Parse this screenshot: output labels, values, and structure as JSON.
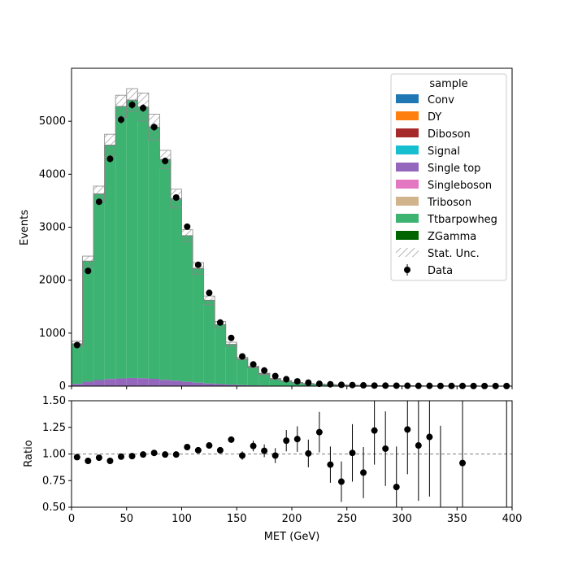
{
  "chart_data": [
    {
      "type": "bar",
      "ylabel": "Events",
      "ylim": [
        0,
        6000
      ],
      "yticks": [
        0,
        1000,
        2000,
        3000,
        4000,
        5000
      ],
      "xlim": [
        0,
        400
      ],
      "bin_edges": [
        0,
        10,
        20,
        30,
        40,
        50,
        60,
        70,
        80,
        90,
        100,
        110,
        120,
        130,
        140,
        150,
        160,
        170,
        180,
        190,
        200,
        210,
        220,
        230,
        240,
        250,
        260,
        270,
        280,
        290,
        300,
        310,
        320,
        330,
        340,
        350,
        360,
        370,
        380,
        390,
        400
      ],
      "series": [
        {
          "name": "Conv",
          "color": "#1f77b4",
          "values": [
            0,
            0,
            0,
            0,
            0,
            0,
            0,
            0,
            0,
            0,
            0,
            0,
            0,
            0,
            0,
            0,
            0,
            0,
            0,
            0,
            0,
            0,
            0,
            0,
            0,
            0,
            0,
            0,
            0,
            0,
            0,
            0,
            0,
            0,
            0,
            0,
            0,
            0,
            0,
            0
          ]
        },
        {
          "name": "DY",
          "color": "#ff7f0e",
          "values": [
            3,
            4,
            5,
            5,
            5,
            4,
            4,
            3,
            3,
            2,
            2,
            1,
            1,
            1,
            1,
            0,
            0,
            0,
            0,
            0,
            0,
            0,
            0,
            0,
            0,
            0,
            0,
            0,
            0,
            0,
            0,
            0,
            0,
            0,
            0,
            0,
            0,
            0,
            0,
            0
          ]
        },
        {
          "name": "Diboson",
          "color": "#a62a2a",
          "values": [
            0,
            0,
            0,
            0,
            0,
            0,
            0,
            0,
            0,
            0,
            0,
            0,
            0,
            0,
            0,
            0,
            0,
            0,
            0,
            0,
            0,
            0,
            0,
            0,
            0,
            0,
            0,
            0,
            0,
            0,
            0,
            0,
            0,
            0,
            0,
            0,
            0,
            0,
            0,
            0
          ]
        },
        {
          "name": "Signal",
          "color": "#17becf",
          "values": [
            0,
            0,
            0,
            0,
            0,
            0,
            0,
            0,
            0,
            0,
            0,
            0,
            0,
            0,
            0,
            0,
            0,
            0,
            0,
            0,
            0,
            0,
            0,
            0,
            0,
            0,
            0,
            0,
            0,
            0,
            0,
            0,
            0,
            0,
            0,
            0,
            0,
            0,
            0,
            0
          ]
        },
        {
          "name": "Single top",
          "color": "#9467bd",
          "values": [
            40,
            80,
            110,
            130,
            140,
            150,
            145,
            135,
            115,
            100,
            80,
            65,
            50,
            38,
            28,
            20,
            14,
            10,
            7,
            5,
            3,
            2,
            2,
            1,
            1,
            1,
            0,
            0,
            0,
            0,
            0,
            0,
            0,
            0,
            0,
            0,
            0,
            0,
            0,
            0
          ]
        },
        {
          "name": "Singleboson",
          "color": "#e377c2",
          "values": [
            0,
            0,
            0,
            0,
            0,
            0,
            0,
            0,
            0,
            0,
            0,
            0,
            0,
            0,
            0,
            0,
            0,
            0,
            0,
            0,
            0,
            0,
            0,
            0,
            0,
            0,
            0,
            0,
            0,
            0,
            0,
            0,
            0,
            0,
            0,
            0,
            0,
            0,
            0,
            0
          ]
        },
        {
          "name": "Triboson",
          "color": "#d2b48c",
          "values": [
            0,
            0,
            0,
            0,
            0,
            0,
            0,
            0,
            0,
            0,
            0,
            0,
            0,
            0,
            0,
            0,
            0,
            0,
            0,
            0,
            0,
            0,
            0,
            0,
            0,
            0,
            0,
            0,
            0,
            0,
            0,
            0,
            0,
            0,
            0,
            0,
            0,
            0,
            0,
            0
          ]
        },
        {
          "name": "Ttbarpowheg",
          "color": "#3cb371",
          "values": [
            757,
            2276,
            3515,
            4415,
            5135,
            5246,
            5121,
            4752,
            4162,
            3438,
            2758,
            2154,
            1569,
            1121,
            760,
            500,
            346,
            220,
            130,
            90,
            61,
            44,
            33,
            26,
            19,
            14,
            11,
            8,
            6,
            5,
            4,
            3,
            2,
            2,
            1,
            1,
            1,
            0,
            0,
            0
          ]
        },
        {
          "name": "ZGamma",
          "color": "#006400",
          "values": [
            0,
            0,
            0,
            0,
            0,
            0,
            0,
            0,
            0,
            0,
            0,
            0,
            0,
            0,
            0,
            0,
            0,
            0,
            0,
            0,
            0,
            0,
            0,
            0,
            0,
            0,
            0,
            0,
            0,
            0,
            0,
            0,
            0,
            0,
            0,
            0,
            0,
            0,
            0,
            0
          ]
        }
      ],
      "stat_unc": {
        "name": "Stat. Unc.",
        "rel": [
          0.06,
          0.04,
          0.04,
          0.045,
          0.04,
          0.04,
          0.05,
          0.05,
          0.04,
          0.05,
          0.04,
          0.05,
          0.05,
          0.05,
          0.05,
          0.05,
          0.05,
          0.06,
          0.07,
          0.08,
          0.1,
          0.1,
          0.12,
          0.14,
          0.15,
          0.16,
          0.18,
          0.2,
          0.2,
          0.22,
          0.22,
          0.25,
          0.25,
          0.3,
          0.3,
          0.3,
          0.3,
          0.3,
          0.3,
          0.3
        ]
      },
      "data": {
        "name": "Data",
        "values": [
          775,
          2175,
          3480,
          4290,
          5030,
          5310,
          5250,
          4890,
          4250,
          3560,
          3010,
          2290,
          1760,
          1200,
          910,
          560,
          410,
          295,
          190,
          130,
          90,
          65,
          45,
          35,
          25,
          20,
          15,
          10,
          9,
          8,
          7,
          5,
          5,
          4,
          3,
          3,
          2,
          2,
          2,
          2
        ]
      },
      "legend": {
        "title": "sample",
        "position": "top-right"
      }
    },
    {
      "type": "scatter",
      "xlabel": "MET (GeV)",
      "ylabel": "Ratio",
      "xlim": [
        0,
        400
      ],
      "ylim": [
        0.5,
        1.5
      ],
      "xticks": [
        0,
        50,
        100,
        150,
        200,
        250,
        300,
        350,
        400
      ],
      "yticks": [
        0.5,
        0.75,
        1.0,
        1.25,
        1.5
      ],
      "reference_line": 1.0,
      "points": [
        {
          "x": 5,
          "y": 0.97,
          "err": 0.01
        },
        {
          "x": 15,
          "y": 0.935,
          "err": 0.01
        },
        {
          "x": 25,
          "y": 0.965,
          "err": 0.01
        },
        {
          "x": 35,
          "y": 0.935,
          "err": 0.01
        },
        {
          "x": 45,
          "y": 0.975,
          "err": 0.01
        },
        {
          "x": 55,
          "y": 0.98,
          "err": 0.01
        },
        {
          "x": 65,
          "y": 0.995,
          "err": 0.01
        },
        {
          "x": 75,
          "y": 1.01,
          "err": 0.01
        },
        {
          "x": 85,
          "y": 0.995,
          "err": 0.01
        },
        {
          "x": 95,
          "y": 0.995,
          "err": 0.01
        },
        {
          "x": 105,
          "y": 1.065,
          "err": 0.01
        },
        {
          "x": 115,
          "y": 1.035,
          "err": 0.01
        },
        {
          "x": 125,
          "y": 1.08,
          "err": 0.01
        },
        {
          "x": 135,
          "y": 1.035,
          "err": 0.015
        },
        {
          "x": 145,
          "y": 1.135,
          "err": 0.03
        },
        {
          "x": 155,
          "y": 0.985,
          "err": 0.04
        },
        {
          "x": 165,
          "y": 1.075,
          "err": 0.05
        },
        {
          "x": 175,
          "y": 1.03,
          "err": 0.06
        },
        {
          "x": 185,
          "y": 0.985,
          "err": 0.07
        },
        {
          "x": 195,
          "y": 1.125,
          "err": 0.1
        },
        {
          "x": 205,
          "y": 1.14,
          "err": 0.12
        },
        {
          "x": 215,
          "y": 1.005,
          "err": 0.13
        },
        {
          "x": 225,
          "y": 1.205,
          "err": 0.19
        },
        {
          "x": 235,
          "y": 0.9,
          "err": 0.17
        },
        {
          "x": 245,
          "y": 0.74,
          "err": 0.19
        },
        {
          "x": 255,
          "y": 1.01,
          "err": 0.27
        },
        {
          "x": 265,
          "y": 0.825,
          "err": 0.24
        },
        {
          "x": 275,
          "y": 1.22,
          "err": 0.32
        },
        {
          "x": 285,
          "y": 1.05,
          "err": 0.35
        },
        {
          "x": 295,
          "y": 0.69,
          "err": 0.38
        },
        {
          "x": 305,
          "y": 1.23,
          "err": 0.42
        },
        {
          "x": 315,
          "y": 1.08,
          "err": 0.52
        },
        {
          "x": 325,
          "y": 1.16,
          "err": 0.56
        },
        {
          "x": 335,
          "y": null,
          "err": null,
          "bar": [
            0.5,
            1.265
          ]
        },
        {
          "x": 355,
          "y": 0.915,
          "err": 0.65
        },
        {
          "x": 395,
          "y": null,
          "err": null,
          "bar": [
            0.5,
            1.5
          ]
        }
      ]
    }
  ]
}
